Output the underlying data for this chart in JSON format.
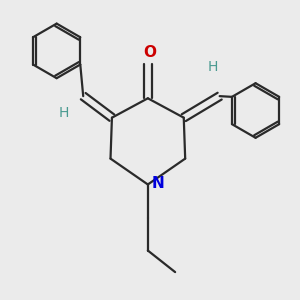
{
  "bg_color": "#ebebeb",
  "bond_color": "#2a2a2a",
  "bond_lw": 1.6,
  "O_color": "#cc0000",
  "N_color": "#0000dd",
  "H_color": "#4a9a90",
  "font_size_atom": 11,
  "font_size_H": 10,
  "xlim": [
    -1.3,
    2.8
  ],
  "ylim": [
    -1.6,
    2.4
  ]
}
